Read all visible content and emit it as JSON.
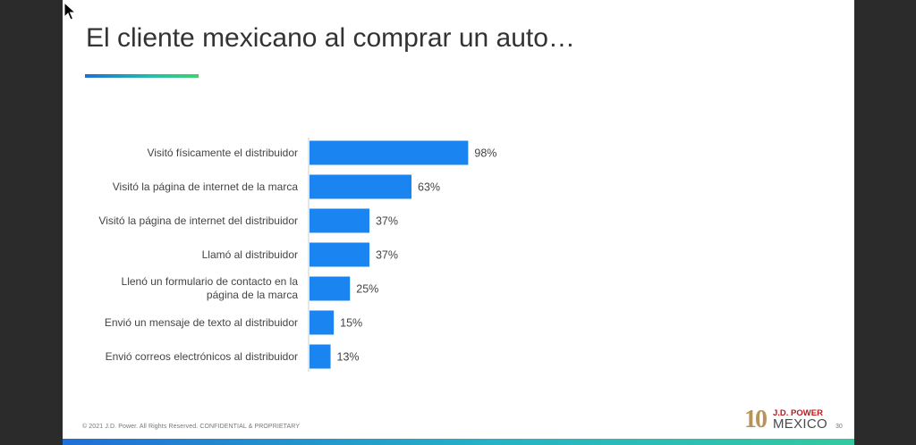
{
  "slide": {
    "title": "El cliente mexicano al comprar un auto…",
    "footer": "© 2021 J.D. Power. All Rights Reserved. CONFIDENTIAL & PROPRIETARY",
    "page_number": "30",
    "logo": {
      "ten": "10",
      "brand": "J.D. POWER",
      "country": "MEXICO"
    }
  },
  "colors": {
    "bar": "#1a84f0",
    "accent_start": "#1f6fd6",
    "accent_end": "#3ad46e",
    "background": "#2b2b2b"
  },
  "chart_data": {
    "type": "bar",
    "orientation": "horizontal",
    "categories": [
      "Visitó físicamente el distribuidor",
      "Visitó la página de internet de la marca",
      "Visitó la página de internet del distribuidor",
      "Llamó al distribuidor",
      "Llenó un formulario de contacto en la página de la marca",
      "Envió un mensaje de texto al distribuidor",
      "Envió correos electrónicos al distribuidor"
    ],
    "category_lines": [
      [
        "Visitó físicamente el distribuidor"
      ],
      [
        "Visitó la página de internet de la marca"
      ],
      [
        "Visitó la página de internet del distribuidor"
      ],
      [
        "Llamó al distribuidor"
      ],
      [
        "Llenó un formulario de contacto en la",
        "página de la marca"
      ],
      [
        "Envió un mensaje de texto al distribuidor"
      ],
      [
        "Envió correos electrónicos al distribuidor"
      ]
    ],
    "values": [
      98,
      63,
      37,
      37,
      25,
      15,
      13
    ],
    "data_labels": [
      "98%",
      "63%",
      "37%",
      "37%",
      "25%",
      "15%",
      "13%"
    ],
    "xlim": [
      0,
      100
    ],
    "grid": false,
    "legend": "none"
  }
}
